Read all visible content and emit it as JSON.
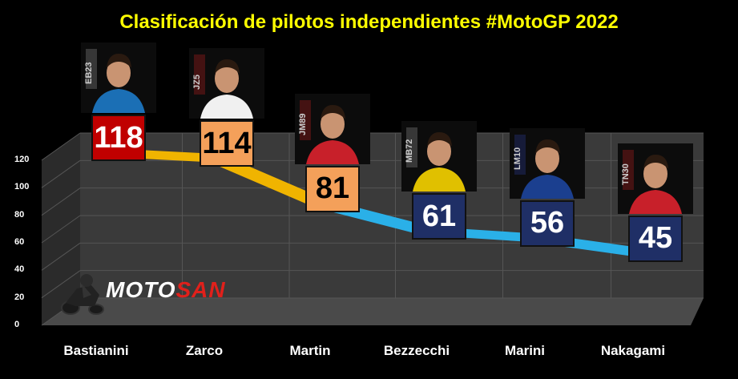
{
  "chart_data": {
    "type": "line",
    "title": "Clasificación de pilotos independientes #MotoGP 2022",
    "categories": [
      "Bastianini",
      "Zarco",
      "Martin",
      "Bezzecchi",
      "Marini",
      "Nakagami"
    ],
    "values": [
      118,
      114,
      81,
      61,
      56,
      45
    ],
    "ylim": [
      0,
      120
    ],
    "yticks": [
      "0",
      "20",
      "40",
      "60",
      "80",
      "100",
      "120"
    ],
    "grid": true,
    "box_colors": [
      "#c00000",
      "#f4a05a",
      "#f4a05a",
      "#1f2f66",
      "#1f2f66",
      "#1f2f66"
    ],
    "line_colors": {
      "top": "#f0b400",
      "bottom": "#2ab0e8"
    },
    "plate_numbers": [
      "EB23",
      "JZ5",
      "JM89",
      "MB72",
      "LM10",
      "TN30"
    ]
  },
  "logo": {
    "text_a": "MOTO",
    "text_b": "SAN"
  }
}
